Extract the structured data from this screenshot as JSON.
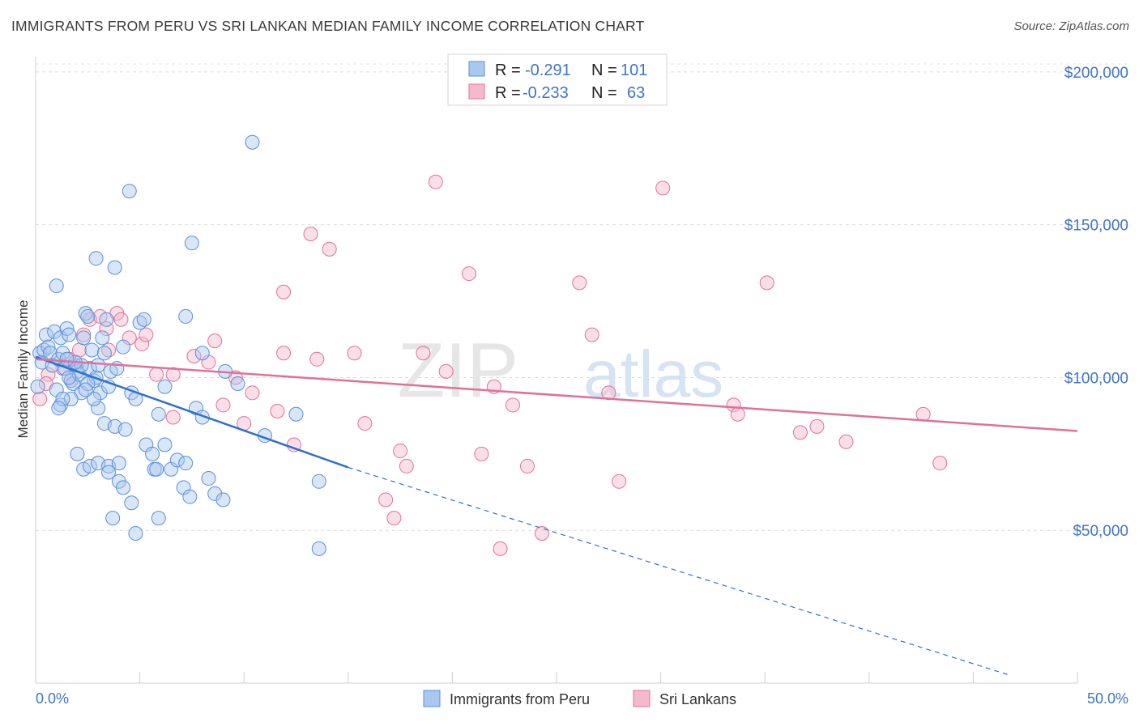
{
  "title": "IMMIGRANTS FROM PERU VS SRI LANKAN MEDIAN FAMILY INCOME CORRELATION CHART",
  "source": "Source: ZipAtlas.com",
  "watermark": {
    "zip": "ZIP",
    "atlas": "atlas"
  },
  "colors": {
    "blue": "#5b8fd6",
    "blue_fill": "#a9c8f0",
    "pink": "#e0709a",
    "pink_fill": "#f6b9cc",
    "axis_text": "#3f74c8"
  },
  "legend": {
    "rows": [
      {
        "r_label": "R =",
        "r_value": "-0.291",
        "n_label": "N =",
        "n_value": "101"
      },
      {
        "r_label": "R =",
        "r_value": "-0.233",
        "n_label": "N =",
        "n_value": "63"
      }
    ]
  },
  "chart_data": {
    "type": "scatter",
    "title": "IMMIGRANTS FROM PERU VS SRI LANKAN MEDIAN FAMILY INCOME CORRELATION CHART",
    "xlabel": "",
    "ylabel": "Median Family Income",
    "xlim": [
      0,
      50
    ],
    "ylim": [
      0,
      205000
    ],
    "x_tick_labels": [
      "0.0%",
      "50.0%"
    ],
    "y_ticks": [
      50000,
      100000,
      150000,
      200000
    ],
    "y_tick_labels": [
      "$50,000",
      "$100,000",
      "$150,000",
      "$200,000"
    ],
    "grid": true,
    "legend_position": "top-center",
    "series": [
      {
        "name": "Immigrants from Peru",
        "color": "#5b8fd6",
        "r": -0.291,
        "n": 101,
        "trend": {
          "x": [
            0,
            15
          ],
          "y": [
            106800,
            70600
          ],
          "dashed_to": [
            46.8,
            2500
          ]
        },
        "points": [
          [
            0.1,
            97000
          ],
          [
            0.2,
            108000
          ],
          [
            0.3,
            105000
          ],
          [
            0.4,
            109000
          ],
          [
            0.5,
            114000
          ],
          [
            0.6,
            110000
          ],
          [
            0.7,
            108000
          ],
          [
            0.8,
            104000
          ],
          [
            0.9,
            115000
          ],
          [
            1.0,
            130000
          ],
          [
            1.1,
            106000
          ],
          [
            1.2,
            113000
          ],
          [
            1.3,
            108000
          ],
          [
            1.4,
            103000
          ],
          [
            1.5,
            116000
          ],
          [
            1.6,
            114000
          ],
          [
            1.7,
            99000
          ],
          [
            1.8,
            98000
          ],
          [
            1.9,
            104000
          ],
          [
            2.0,
            102000
          ],
          [
            2.1,
            101000
          ],
          [
            2.2,
            95000
          ],
          [
            2.3,
            113000
          ],
          [
            2.4,
            121000
          ],
          [
            2.5,
            120000
          ],
          [
            2.6,
            103000
          ],
          [
            2.7,
            109000
          ],
          [
            2.8,
            99000
          ],
          [
            2.9,
            100000
          ],
          [
            3.0,
            104000
          ],
          [
            3.1,
            95000
          ],
          [
            3.2,
            113000
          ],
          [
            3.3,
            108000
          ],
          [
            3.4,
            119000
          ],
          [
            3.5,
            97000
          ],
          [
            3.6,
            102000
          ],
          [
            3.8,
            136000
          ],
          [
            4.2,
            110000
          ],
          [
            4.6,
            95000
          ],
          [
            5.0,
            118000
          ],
          [
            1.0,
            96000
          ],
          [
            1.2,
            91000
          ],
          [
            1.7,
            93000
          ],
          [
            2.0,
            75000
          ],
          [
            2.3,
            70000
          ],
          [
            2.6,
            71000
          ],
          [
            3.0,
            72000
          ],
          [
            3.3,
            85000
          ],
          [
            3.5,
            71000
          ],
          [
            3.8,
            84000
          ],
          [
            4.0,
            72000
          ],
          [
            4.3,
            83000
          ],
          [
            4.6,
            59000
          ],
          [
            4.8,
            49000
          ],
          [
            5.3,
            78000
          ],
          [
            5.6,
            75000
          ],
          [
            5.9,
            88000
          ],
          [
            6.2,
            78000
          ],
          [
            6.5,
            70000
          ],
          [
            6.8,
            73000
          ],
          [
            7.1,
            64000
          ],
          [
            7.4,
            61000
          ],
          [
            7.7,
            90000
          ],
          [
            8.0,
            87000
          ],
          [
            8.3,
            67000
          ],
          [
            8.6,
            62000
          ],
          [
            9.0,
            60000
          ],
          [
            5.7,
            70000
          ],
          [
            4.0,
            66000
          ],
          [
            3.5,
            69000
          ],
          [
            3.0,
            90000
          ],
          [
            2.8,
            93000
          ],
          [
            2.5,
            98000
          ],
          [
            2.2,
            104000
          ],
          [
            1.9,
            105000
          ],
          [
            1.6,
            100000
          ],
          [
            1.3,
            93000
          ],
          [
            1.1,
            90000
          ],
          [
            2.9,
            139000
          ],
          [
            4.5,
            161000
          ],
          [
            7.5,
            144000
          ],
          [
            7.2,
            120000
          ],
          [
            10.4,
            177000
          ],
          [
            8.0,
            108000
          ],
          [
            9.1,
            102000
          ],
          [
            9.7,
            98000
          ],
          [
            11.0,
            81000
          ],
          [
            12.5,
            88000
          ],
          [
            13.6,
            44000
          ],
          [
            13.6,
            66000
          ],
          [
            5.9,
            54000
          ],
          [
            3.7,
            54000
          ],
          [
            6.2,
            97000
          ],
          [
            7.2,
            72000
          ],
          [
            5.8,
            70000
          ],
          [
            4.2,
            64000
          ],
          [
            5.2,
            119000
          ],
          [
            3.9,
            103000
          ],
          [
            4.8,
            93000
          ],
          [
            2.4,
            96000
          ],
          [
            1.5,
            106000
          ]
        ]
      },
      {
        "name": "Sri Lankans",
        "color": "#e0709a",
        "r": -0.233,
        "n": 63,
        "trend": {
          "x": [
            0,
            50
          ],
          "y": [
            106000,
            82500
          ]
        },
        "points": [
          [
            0.2,
            93000
          ],
          [
            0.6,
            101000
          ],
          [
            1.3,
            103000
          ],
          [
            1.7,
            99000
          ],
          [
            2.1,
            109000
          ],
          [
            2.3,
            114000
          ],
          [
            2.6,
            119000
          ],
          [
            3.1,
            120000
          ],
          [
            3.4,
            116000
          ],
          [
            3.9,
            121000
          ],
          [
            4.1,
            119000
          ],
          [
            4.5,
            113000
          ],
          [
            5.1,
            111000
          ],
          [
            5.3,
            114000
          ],
          [
            5.8,
            101000
          ],
          [
            6.6,
            101000
          ],
          [
            7.6,
            107000
          ],
          [
            8.3,
            105000
          ],
          [
            8.6,
            112000
          ],
          [
            9.0,
            91000
          ],
          [
            9.6,
            100000
          ],
          [
            10.4,
            95000
          ],
          [
            10.0,
            85000
          ],
          [
            11.6,
            89000
          ],
          [
            11.9,
            128000
          ],
          [
            11.9,
            108000
          ],
          [
            12.4,
            78000
          ],
          [
            13.2,
            147000
          ],
          [
            13.5,
            106000
          ],
          [
            14.1,
            142000
          ],
          [
            15.3,
            108000
          ],
          [
            15.8,
            85000
          ],
          [
            16.8,
            60000
          ],
          [
            17.2,
            54000
          ],
          [
            17.5,
            76000
          ],
          [
            17.8,
            71000
          ],
          [
            18.6,
            108000
          ],
          [
            19.2,
            164000
          ],
          [
            19.7,
            102000
          ],
          [
            20.8,
            134000
          ],
          [
            21.4,
            75000
          ],
          [
            22.0,
            97000
          ],
          [
            22.3,
            44000
          ],
          [
            22.9,
            91000
          ],
          [
            23.6,
            71000
          ],
          [
            24.3,
            49000
          ],
          [
            26.1,
            131000
          ],
          [
            26.7,
            114000
          ],
          [
            27.5,
            95000
          ],
          [
            28.0,
            66000
          ],
          [
            30.1,
            162000
          ],
          [
            33.5,
            91000
          ],
          [
            33.7,
            88000
          ],
          [
            35.1,
            131000
          ],
          [
            36.7,
            82000
          ],
          [
            37.5,
            84000
          ],
          [
            38.9,
            79000
          ],
          [
            42.6,
            88000
          ],
          [
            43.4,
            72000
          ],
          [
            6.6,
            87000
          ],
          [
            3.5,
            109000
          ],
          [
            1.6,
            106000
          ],
          [
            0.5,
            98000
          ]
        ]
      }
    ]
  }
}
